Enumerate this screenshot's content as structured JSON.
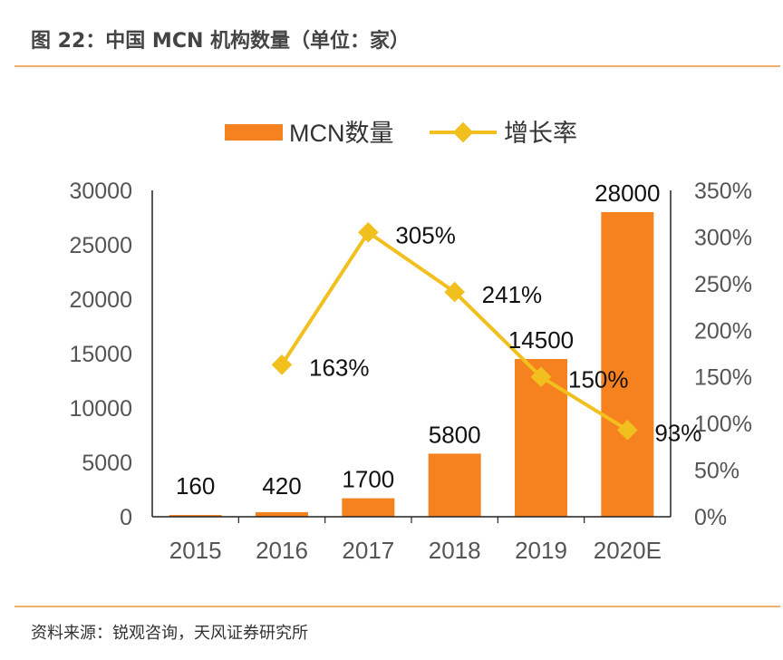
{
  "header": {
    "title": "图 22：中国 MCN 机构数量（单位：家）"
  },
  "footer": {
    "source": "资料来源：锐观咨询，天风证券研究所"
  },
  "colors": {
    "bar": "#f5811f",
    "line": "#f2c01e",
    "rule": "#f0b070",
    "axis_text": "#555555"
  },
  "chart_data": {
    "type": "bar",
    "categories": [
      "2015",
      "2016",
      "2017",
      "2018",
      "2019",
      "2020E"
    ],
    "series": [
      {
        "name": "MCN数量",
        "type": "bar",
        "axis": "left",
        "values": [
          160,
          420,
          1700,
          5800,
          14500,
          28000
        ],
        "labels": [
          "160",
          "420",
          "1700",
          "5800",
          "14500",
          "28000"
        ]
      },
      {
        "name": "增长率",
        "type": "line",
        "axis": "right",
        "values": [
          null,
          163,
          305,
          241,
          150,
          93
        ],
        "labels": [
          "",
          "163%",
          "305%",
          "241%",
          "150%",
          "93%"
        ]
      }
    ],
    "left_axis": {
      "ylim": [
        0,
        30000
      ],
      "ticks": [
        "0",
        "5000",
        "10000",
        "15000",
        "20000",
        "25000",
        "30000"
      ]
    },
    "right_axis": {
      "ylim": [
        0,
        350
      ],
      "ticks": [
        "0%",
        "50%",
        "100%",
        "150%",
        "200%",
        "250%",
        "300%",
        "350%"
      ]
    },
    "legend": {
      "position": "top-center"
    },
    "grid": false
  }
}
